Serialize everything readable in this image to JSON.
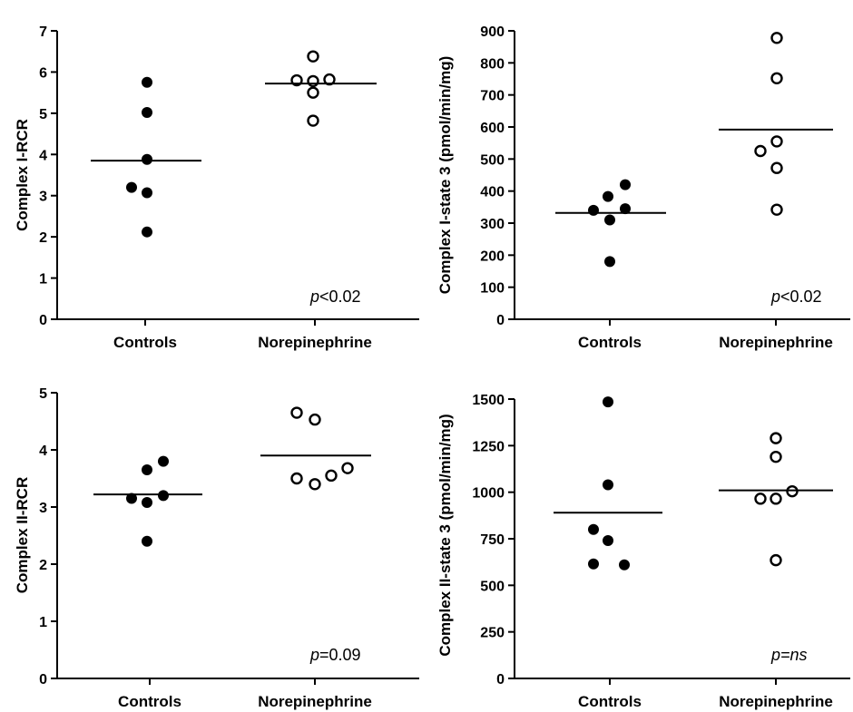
{
  "chart_data": [
    {
      "type": "scatter",
      "ylabel": "Complex I-RCR",
      "categories": [
        "Controls",
        "Norepinephrine"
      ],
      "ylim": [
        0,
        7
      ],
      "yticks": [
        0,
        1,
        2,
        3,
        4,
        5,
        6,
        7
      ],
      "series": [
        {
          "category": "Controls",
          "marker": "filled",
          "values": [
            5.75,
            5.02,
            3.88,
            3.2,
            3.07,
            2.12
          ],
          "mean": 3.85
        },
        {
          "category": "Norepinephrine",
          "marker": "open",
          "values": [
            6.38,
            5.78,
            5.82,
            5.8,
            5.5,
            4.82
          ],
          "mean": 5.72
        }
      ],
      "annotation": {
        "italic": "p",
        "text": "<0.02"
      }
    },
    {
      "type": "scatter",
      "ylabel": "Complex I-state 3 (pmol/min/mg)",
      "categories": [
        "Controls",
        "Norepinephrine"
      ],
      "ylim": [
        0,
        900
      ],
      "yticks": [
        0,
        100,
        200,
        300,
        400,
        500,
        600,
        700,
        800,
        900
      ],
      "series": [
        {
          "category": "Controls",
          "marker": "filled",
          "values": [
            420,
            383,
            345,
            340,
            310,
            180
          ],
          "mean": 332
        },
        {
          "category": "Norepinephrine",
          "marker": "open",
          "values": [
            878,
            752,
            555,
            525,
            472,
            342
          ],
          "mean": 592
        }
      ],
      "annotation": {
        "italic": "p",
        "text": "<0.02"
      }
    },
    {
      "type": "scatter",
      "ylabel": "Complex II-RCR",
      "categories": [
        "Controls",
        "Norepinephrine"
      ],
      "ylim": [
        0,
        5
      ],
      "yticks": [
        0,
        1,
        2,
        3,
        4,
        5
      ],
      "series": [
        {
          "category": "Controls",
          "marker": "filled",
          "values": [
            3.8,
            3.65,
            3.2,
            3.15,
            3.08,
            2.4
          ],
          "mean": 3.22
        },
        {
          "category": "Norepinephrine",
          "marker": "open",
          "values": [
            4.65,
            4.53,
            3.68,
            3.55,
            3.5,
            3.4
          ],
          "mean": 3.9
        }
      ],
      "annotation": {
        "italic": "p",
        "text": "=0.09"
      }
    },
    {
      "type": "scatter",
      "ylabel": "Complex II-state 3 (pmol/min/mg)",
      "categories": [
        "Controls",
        "Norepinephrine"
      ],
      "ylim": [
        0,
        1500
      ],
      "yticks": [
        0,
        250,
        500,
        750,
        1000,
        1250,
        1500
      ],
      "series": [
        {
          "category": "Controls",
          "marker": "filled",
          "values": [
            1485,
            1040,
            800,
            740,
            615,
            610
          ],
          "mean": 890
        },
        {
          "category": "Norepinephrine",
          "marker": "open",
          "values": [
            1290,
            1190,
            1005,
            965,
            965,
            635
          ],
          "mean": 1010
        }
      ],
      "annotation": {
        "italic": "p",
        "text": "=ns",
        "all_italic": true
      }
    }
  ]
}
